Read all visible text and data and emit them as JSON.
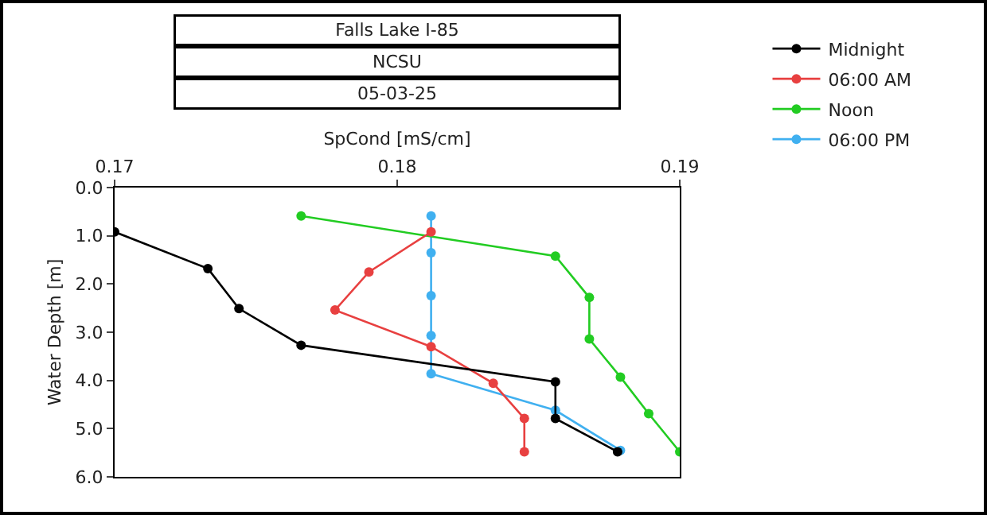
{
  "chart_data": {
    "type": "line",
    "title": "Falls Lake I-85",
    "subtitle": "NCSU",
    "annotations": [
      "05-03-25"
    ],
    "xlabel": "SpCond [mS/cm]",
    "ylabel": "Water Depth [m]",
    "xlim": [
      0.17,
      0.19
    ],
    "xticks": [
      0.17,
      0.18,
      0.19
    ],
    "ylim": [
      6,
      0
    ],
    "yticks": [
      {
        "value": 0,
        "label": "0.0"
      },
      {
        "value": 1,
        "label": "1.0"
      },
      {
        "value": 2,
        "label": "2.0"
      },
      {
        "value": 3,
        "label": "3.0"
      },
      {
        "value": 4,
        "label": "4.0"
      },
      {
        "value": 5,
        "label": "5.0"
      },
      {
        "value": 6,
        "label": "6.0"
      }
    ],
    "grid": false,
    "legend": "top right",
    "marker": "circle",
    "line_style": "solid",
    "series": [
      {
        "name": "Midnight",
        "color": "#000000",
        "x": [
          0.17,
          0.1733,
          0.1744,
          0.1766,
          0.1856,
          0.1856,
          0.1878
        ],
        "values": [
          0.92,
          1.68,
          2.51,
          3.27,
          4.03,
          4.79,
          5.48
        ]
      },
      {
        "name": "06:00 AM",
        "color": "#e84040",
        "x": [
          0.1812,
          0.179,
          0.1778,
          0.1812,
          0.1834,
          0.1845,
          0.1845
        ],
        "values": [
          0.92,
          1.75,
          2.54,
          3.3,
          4.06,
          4.79,
          5.48
        ]
      },
      {
        "name": "Noon",
        "color": "#22cc22",
        "x": [
          0.1766,
          0.1856,
          0.1868,
          0.1868,
          0.1879,
          0.1889,
          0.19
        ],
        "values": [
          0.59,
          1.42,
          2.28,
          3.14,
          3.93,
          4.69,
          5.48
        ]
      },
      {
        "name": "06:00 PM",
        "color": "#40b0f0",
        "x": [
          0.1812,
          0.1812,
          0.1812,
          0.1812,
          0.1812,
          0.1856,
          0.1879
        ],
        "values": [
          0.59,
          1.35,
          2.24,
          3.07,
          3.86,
          4.62,
          5.45
        ]
      }
    ]
  }
}
